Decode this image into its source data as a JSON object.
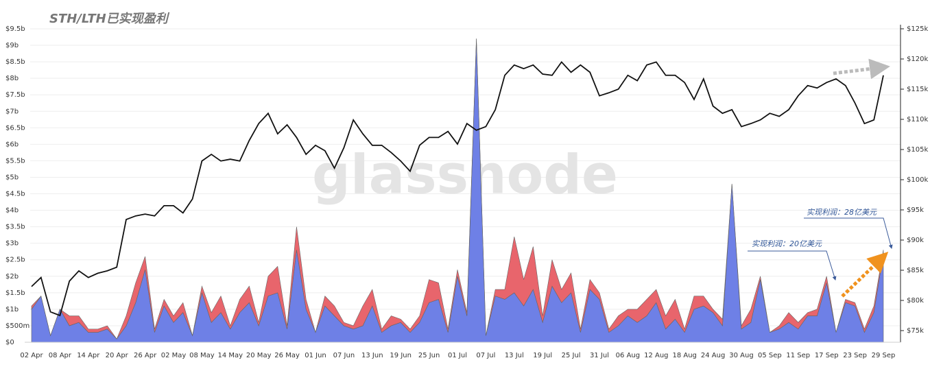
{
  "chart_data": {
    "type": "area",
    "title": "STH/LTH已实现盈利",
    "watermark": "glassnode",
    "annotations": [
      "实现利润：20亿美元",
      "实现利润：28亿美元"
    ],
    "categories": [
      "02 Apr",
      null,
      null,
      "08 Apr",
      null,
      null,
      "14 Apr",
      null,
      null,
      "20 Apr",
      null,
      null,
      "26 Apr",
      null,
      null,
      "02 May",
      null,
      null,
      "08 May",
      null,
      null,
      "14 May",
      null,
      null,
      "20 May",
      null,
      null,
      "26 May",
      null,
      null,
      "01 Jun",
      null,
      null,
      "07 Jun",
      null,
      null,
      "13 Jun",
      null,
      null,
      "19 Jun",
      null,
      null,
      "25 Jun",
      null,
      null,
      "01 Jul",
      null,
      null,
      "07 Jul",
      null,
      null,
      "13 Jul",
      null,
      null,
      "19 Jul",
      null,
      null,
      "25 Jul",
      null,
      null,
      "31 Jul",
      null,
      null,
      "06 Aug",
      null,
      null,
      "12 Aug",
      null,
      null,
      "18 Aug",
      null,
      null,
      "24 Aug",
      null,
      null,
      "30 Aug",
      null,
      null,
      "05 Sep",
      null,
      null,
      "11 Sep",
      null,
      null,
      "17 Sep",
      null,
      null,
      "23 Sep",
      null,
      null,
      "29 Sep"
    ],
    "series": [
      {
        "color": "#6e80e6",
        "values": [
          1.0,
          1.4,
          0.2,
          1.0,
          0.5,
          0.6,
          0.3,
          0.3,
          0.4,
          0.1,
          0.5,
          1.2,
          2.2,
          0.3,
          1.1,
          0.6,
          0.9,
          0.2,
          1.5,
          0.6,
          0.9,
          0.4,
          0.9,
          1.2,
          0.5,
          1.4,
          1.5,
          0.4,
          2.8,
          1.0,
          0.3,
          1.1,
          0.8,
          0.5,
          0.4,
          0.5,
          1.1,
          0.3,
          0.5,
          0.6,
          0.3,
          0.6,
          1.2,
          1.3,
          0.3,
          2.0,
          0.8,
          9.2,
          0.2,
          1.4,
          1.3,
          1.5,
          1.1,
          1.6,
          0.6,
          1.7,
          1.2,
          1.5,
          0.3,
          1.6,
          1.3,
          0.3,
          0.5,
          0.8,
          0.6,
          0.8,
          1.2,
          0.4,
          0.7,
          0.3,
          1.0,
          1.1,
          0.9,
          0.5,
          4.8,
          0.4,
          0.6,
          1.9,
          0.3,
          0.4,
          0.6,
          0.4,
          0.8,
          0.8,
          1.8,
          0.3,
          1.2,
          1.1,
          0.3,
          0.9,
          2.7
        ]
      },
      {
        "color": "#e8656c",
        "values": [
          0.1,
          0,
          0,
          0,
          0.3,
          0.2,
          0.1,
          0.1,
          0.1,
          0,
          0.3,
          0.6,
          0.4,
          0.1,
          0.2,
          0.2,
          0.3,
          0,
          0.2,
          0.3,
          0.5,
          0.1,
          0.4,
          0.5,
          0.1,
          0.6,
          0.8,
          0.1,
          0.7,
          0.3,
          0,
          0.3,
          0.3,
          0.1,
          0.1,
          0.6,
          0.5,
          0.1,
          0.3,
          0.1,
          0.1,
          0.2,
          0.7,
          0.5,
          0.1,
          0.2,
          0.1,
          0,
          0,
          0.2,
          0.3,
          1.7,
          0.8,
          1.3,
          0.2,
          0.8,
          0.4,
          0.6,
          0.1,
          0.3,
          0.2,
          0.1,
          0.3,
          0.2,
          0.4,
          0.5,
          0.4,
          0.4,
          0.6,
          0.1,
          0.4,
          0.3,
          0.1,
          0.2,
          0,
          0.1,
          0.4,
          0.1,
          0,
          0.1,
          0.3,
          0.2,
          0.1,
          0.2,
          0.2,
          0,
          0.1,
          0.1,
          0.1,
          0.2,
          0.1
        ]
      },
      {
        "type": "line",
        "axis": "y2",
        "color": "#111111",
        "values": [
          82300,
          83800,
          78100,
          77500,
          83200,
          84900,
          83800,
          84500,
          84900,
          85500,
          93400,
          94000,
          94300,
          94000,
          95700,
          95700,
          94500,
          96800,
          103100,
          104200,
          103100,
          103400,
          103100,
          106500,
          109300,
          111000,
          107600,
          109100,
          107000,
          104200,
          105700,
          104800,
          101900,
          105300,
          109900,
          107600,
          105700,
          105700,
          104500,
          103100,
          101400,
          105700,
          107000,
          107000,
          108000,
          105900,
          109300,
          108200,
          108800,
          111600,
          117300,
          119000,
          118400,
          119000,
          117500,
          117300,
          119500,
          117800,
          119000,
          117800,
          113900,
          114400,
          115000,
          117300,
          116400,
          119000,
          119500,
          117300,
          117300,
          116100,
          113300,
          116700,
          112200,
          111000,
          111600,
          108800,
          109300,
          109900,
          111000,
          110500,
          111600,
          113900,
          115600,
          115200,
          116100,
          116700,
          115600,
          112700,
          109300,
          109900,
          117300
        ]
      }
    ],
    "ylim": [
      0,
      9.5
    ],
    "yticks": [
      {
        "value": 0,
        "label": "$0"
      },
      {
        "value": 0.5,
        "label": "$500m"
      },
      {
        "value": 1,
        "label": "$1b"
      },
      {
        "value": 1.5,
        "label": "$1.5b"
      },
      {
        "value": 2,
        "label": "$2b"
      },
      {
        "value": 2.5,
        "label": "$2.5b"
      },
      {
        "value": 3,
        "label": "$3b"
      },
      {
        "value": 3.5,
        "label": "$3.5b"
      },
      {
        "value": 4,
        "label": "$4b"
      },
      {
        "value": 4.5,
        "label": "$4.5b"
      },
      {
        "value": 5,
        "label": "$5b"
      },
      {
        "value": 5.5,
        "label": "$5.5b"
      },
      {
        "value": 6,
        "label": "$6b"
      },
      {
        "value": 6.5,
        "label": "$6.5b"
      },
      {
        "value": 7,
        "label": "$7b"
      },
      {
        "value": 7.5,
        "label": "$7.5b"
      },
      {
        "value": 8,
        "label": "$8b"
      },
      {
        "value": 8.5,
        "label": "$8.5b"
      },
      {
        "value": 9,
        "label": "$9b"
      },
      {
        "value": 9.5,
        "label": "$9.5b"
      }
    ],
    "y2lim": [
      73070,
      125000
    ],
    "y2ticks": [
      {
        "value": 75000,
        "label": "$75k"
      },
      {
        "value": 80000,
        "label": "$80k"
      },
      {
        "value": 85000,
        "label": "$85k"
      },
      {
        "value": 90000,
        "label": "$90k"
      },
      {
        "value": 95000,
        "label": "$95k"
      },
      {
        "value": 100000,
        "label": "$100k"
      },
      {
        "value": 105000,
        "label": "$105k"
      },
      {
        "value": 110000,
        "label": "$110k"
      },
      {
        "value": 115000,
        "label": "$115k"
      },
      {
        "value": 120000,
        "label": "$120k"
      },
      {
        "value": 125000,
        "label": "$125k"
      }
    ],
    "grid": true
  }
}
